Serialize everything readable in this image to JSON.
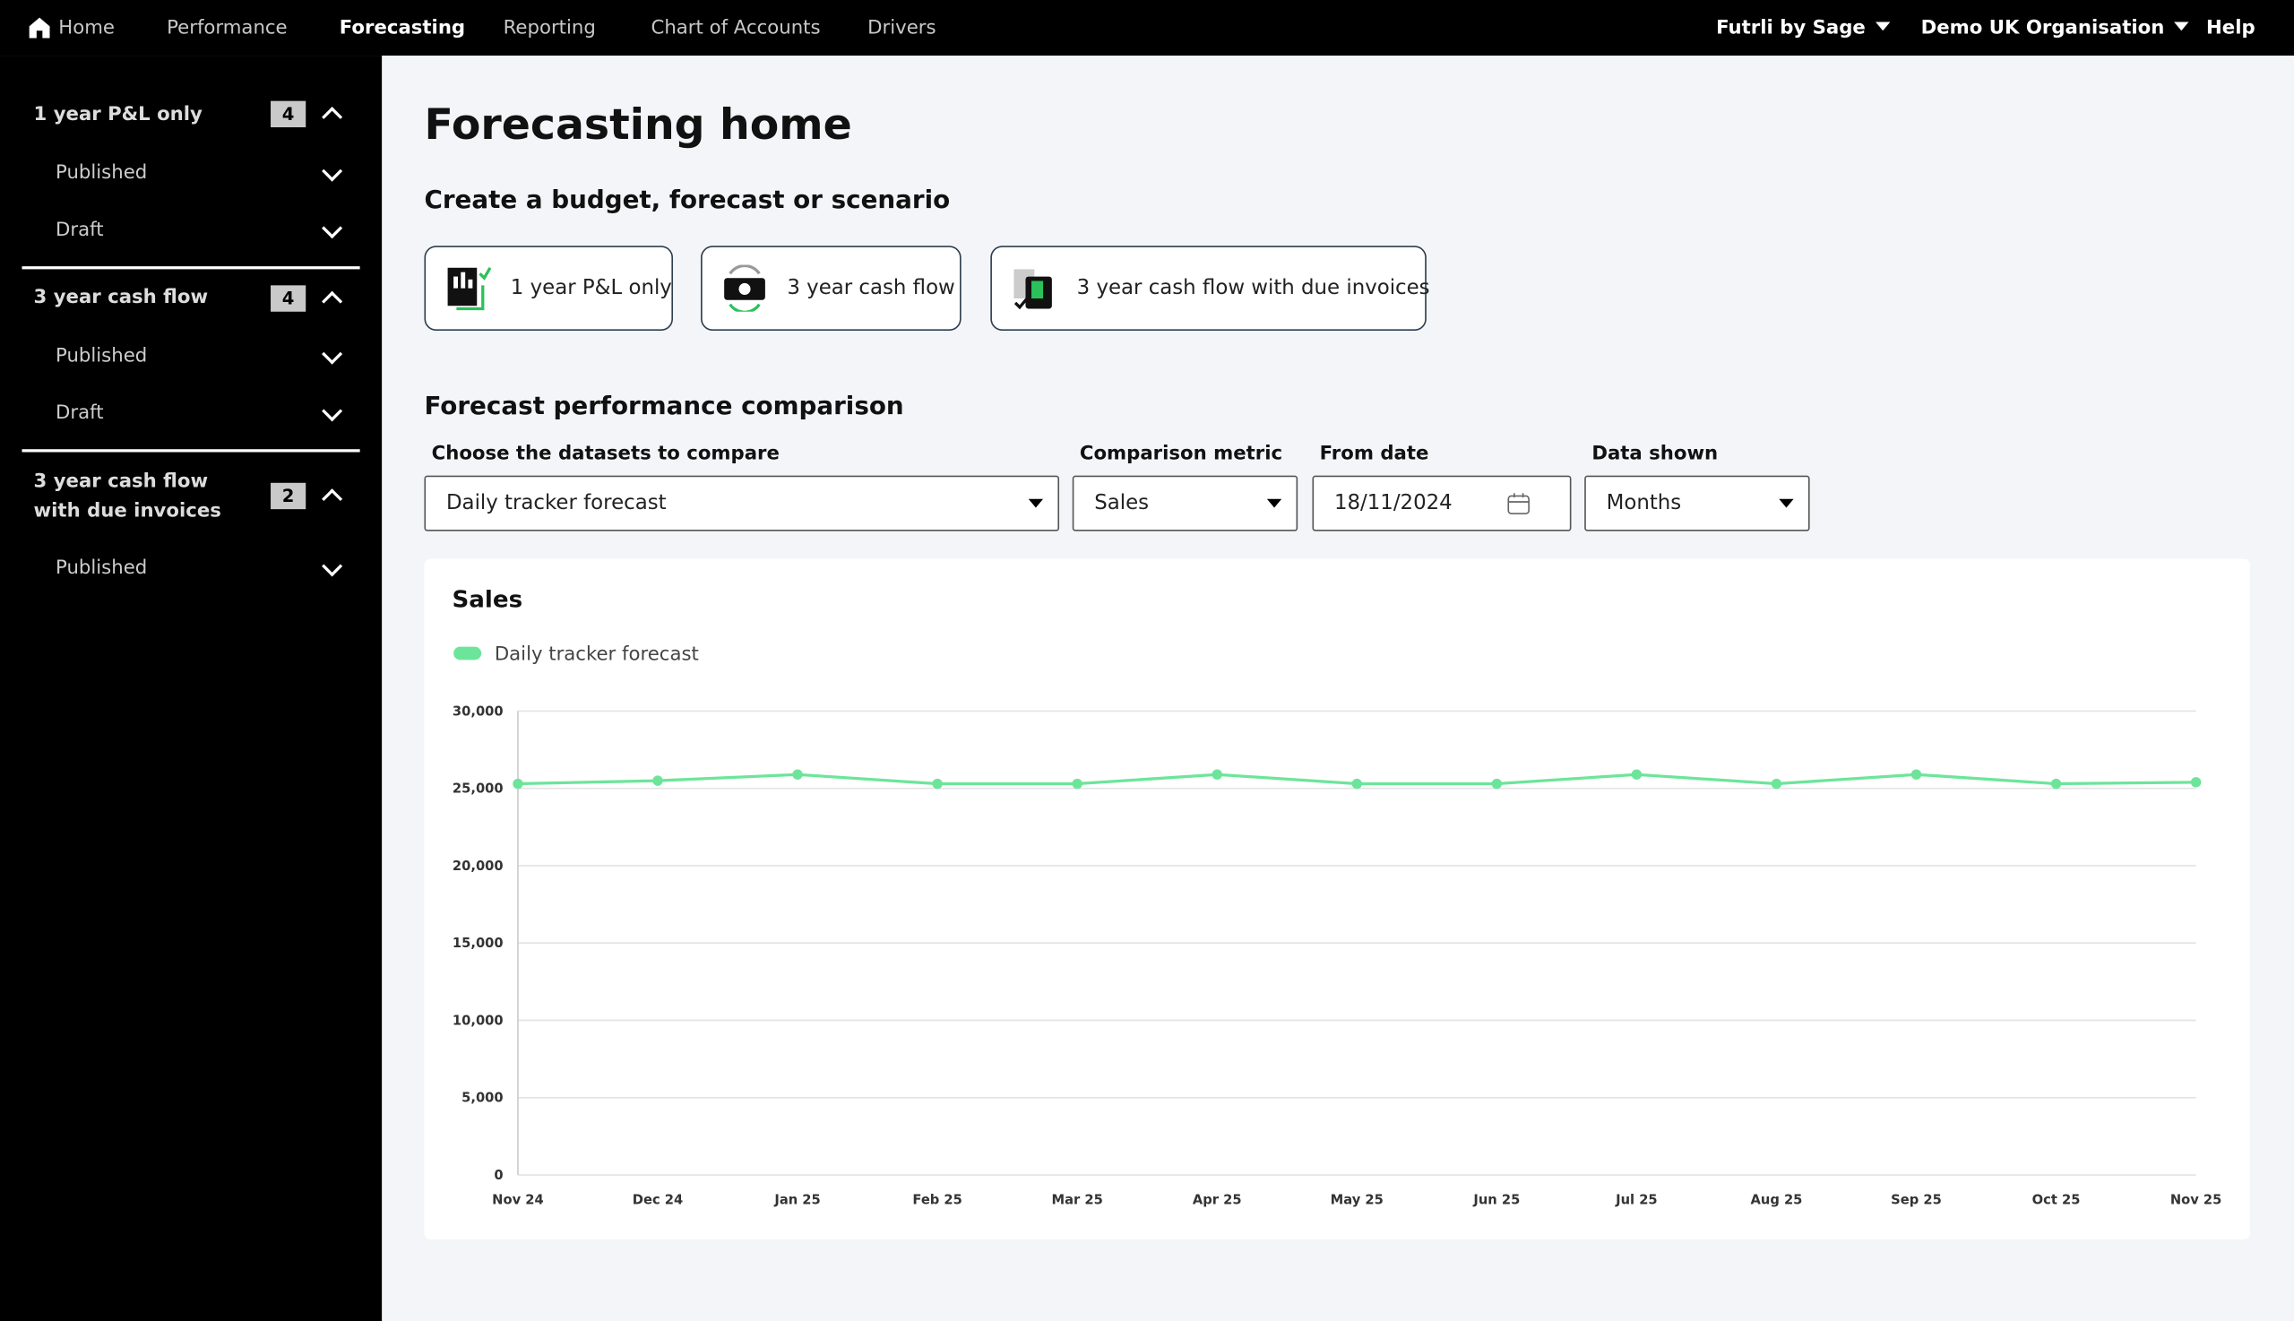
{
  "nav": {
    "items": [
      "Home",
      "Performance",
      "Forecasting",
      "Reporting",
      "Chart of Accounts",
      "Drivers"
    ],
    "menus": [
      "Futrli by Sage",
      "Demo UK Organisation",
      "Help"
    ]
  },
  "sidebar": {
    "groups": [
      {
        "title": "1 year P&L only",
        "count": 4,
        "items": [
          "Published",
          "Draft"
        ]
      },
      {
        "title": "3 year cash flow",
        "count": 4,
        "items": [
          "Published",
          "Draft"
        ]
      },
      {
        "title": "3 year cash flow with due invoices",
        "count": 2,
        "items": [
          "Published"
        ]
      }
    ]
  },
  "page": {
    "title": "Forecasting home",
    "create_heading": "Create a budget, forecast or scenario",
    "cards": [
      "1 year P&L only",
      "3 year cash flow",
      "3 year cash flow with due invoices"
    ],
    "comparison_heading": "Forecast performance comparison",
    "filters": [
      {
        "label": "Choose the datasets to compare",
        "value": "Daily tracker forecast"
      },
      {
        "label": "Comparison metric",
        "value": "Sales"
      },
      {
        "label": "From date",
        "value": "18/11/2024"
      },
      {
        "label": "Data shown",
        "value": "Months"
      }
    ]
  },
  "chart_data": {
    "type": "line",
    "title": "Sales",
    "categories": [
      "Nov 24",
      "Dec 24",
      "Jan 25",
      "Feb 25",
      "Mar 25",
      "Apr 25",
      "May 25",
      "Jun 25",
      "Jul 25",
      "Aug 25",
      "Sep 25",
      "Oct 25",
      "Nov 25"
    ],
    "series": [
      {
        "name": "Daily tracker forecast",
        "color": "#6ce59a",
        "values": [
          25300,
          25500,
          25900,
          25300,
          25300,
          25900,
          25300,
          25300,
          25900,
          25300,
          25900,
          25300,
          25400
        ]
      }
    ],
    "ylim": [
      0,
      30000
    ],
    "yticks": [
      0,
      {
        "value": 5000,
        "label": "5,000"
      },
      {
        "value": 10000,
        "label": "10,000"
      },
      {
        "value": 15000,
        "label": "15,000"
      },
      {
        "value": 20000,
        "label": "20,000"
      },
      {
        "value": 25000,
        "label": "25,000"
      },
      {
        "value": 30000,
        "label": "30,000"
      }
    ],
    "grid": true
  }
}
